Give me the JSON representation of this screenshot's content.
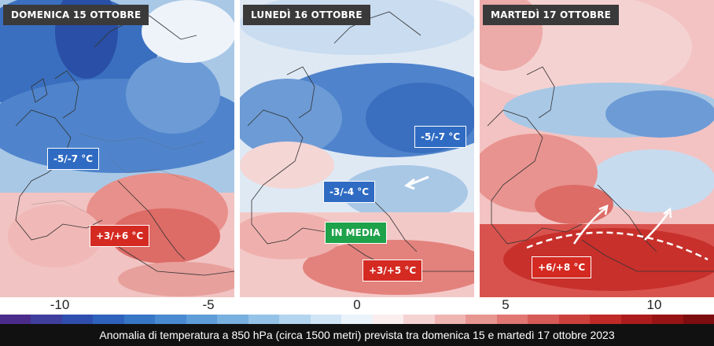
{
  "panels": [
    {
      "title": "DOMENICA 15 OTTOBRE",
      "labels": [
        {
          "text": "-5/-7 °C",
          "kind": "cold"
        },
        {
          "text": "+3/+6 °C",
          "kind": "warm"
        }
      ]
    },
    {
      "title": "LUNEDÌ 16 OTTOBRE",
      "labels": [
        {
          "text": "-5/-7 °C",
          "kind": "cold"
        },
        {
          "text": "-3/-4 °C",
          "kind": "cold"
        },
        {
          "text": "IN MEDIA",
          "kind": "green"
        },
        {
          "text": "+3/+5 °C",
          "kind": "warm"
        }
      ]
    },
    {
      "title": "MARTEDÌ 17 OTTOBRE",
      "labels": [
        {
          "text": "+6/+8 °C",
          "kind": "warm"
        }
      ]
    }
  ],
  "colorbar": {
    "ticks": [
      "-10",
      "-5",
      "0",
      "5",
      "10"
    ],
    "colors": [
      "#4b2c8a",
      "#3f3f9e",
      "#2f4fae",
      "#2e62bc",
      "#3876c6",
      "#4a8ad0",
      "#5f9dd8",
      "#78b0e0",
      "#95c3e8",
      "#b3d5ef",
      "#d0e5f5",
      "#ebf3fa",
      "#fbeeee",
      "#f6d3d3",
      "#efb5b3",
      "#e89692",
      "#e07773",
      "#d65a56",
      "#cc403c",
      "#c02a27",
      "#ad1c1c",
      "#981414",
      "#7e0d0f"
    ]
  },
  "caption": "Anomalia di temperatura a 850 hPa (circa 1500 metri) prevista tra domenica 15 e martedì 17 ottobre 2023",
  "colors": {
    "cold": "#2f6bc3",
    "warm": "#d42a22",
    "green": "#1ea24a"
  }
}
